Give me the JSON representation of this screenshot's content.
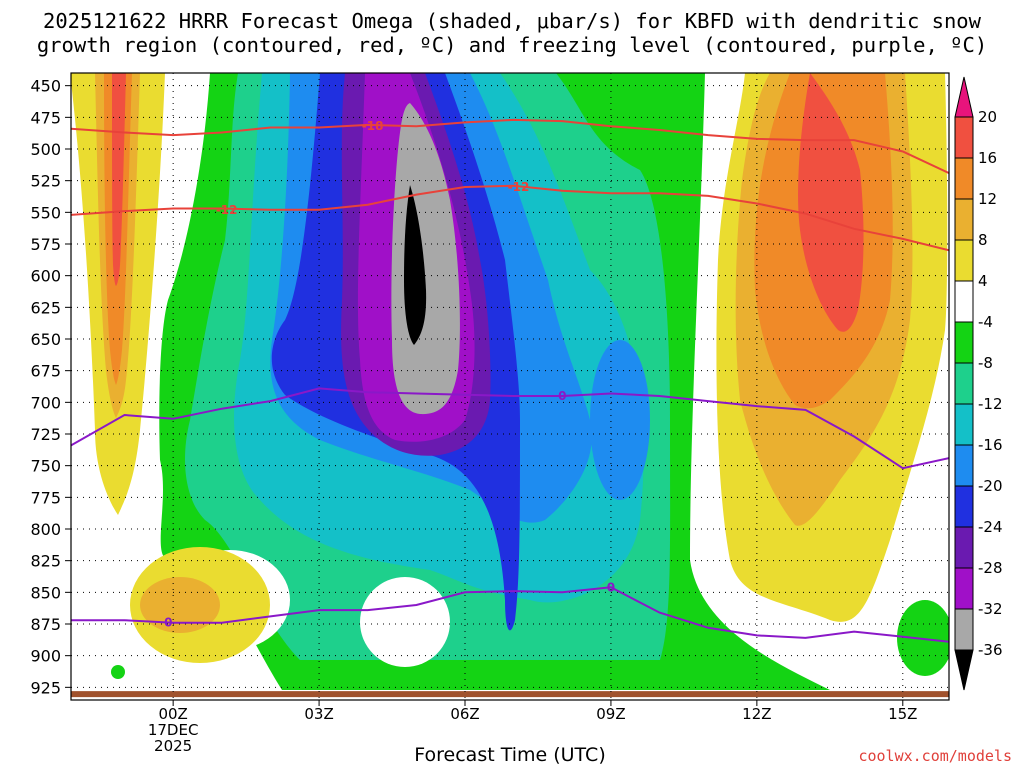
{
  "title_line1": "2025121622 HRRR Forecast Omega (shaded, μbar/s) for KBFD with dendritic snow",
  "title_line2": "growth region (contoured, red, ºC) and freezing level (contoured, purple, ºC)",
  "watermark": "coolwx.com/models",
  "colors": {
    "red_contour": "#e8423a",
    "purple_contour": "#8a18c8",
    "ground": "#a0522d"
  },
  "chart_data": {
    "type": "heatmap",
    "title": "2025121622 HRRR Forecast Omega (shaded, μbar/s) for KBFD with dendritic snow growth region (contoured, red, ºC) and freezing level (contoured, purple, ºC)",
    "xlabel": "Forecast Time (UTC)",
    "ylabel": "",
    "x_ticks": [
      {
        "h": 0,
        "label": "00Z",
        "sub1": "17DEC",
        "sub2": "2025"
      },
      {
        "h": 3,
        "label": "03Z",
        "sub1": "",
        "sub2": ""
      },
      {
        "h": 6,
        "label": "06Z",
        "sub1": "",
        "sub2": ""
      },
      {
        "h": 9,
        "label": "09Z",
        "sub1": "",
        "sub2": ""
      },
      {
        "h": 12,
        "label": "12Z",
        "sub1": "",
        "sub2": ""
      },
      {
        "h": 15,
        "label": "15Z",
        "sub1": "",
        "sub2": ""
      }
    ],
    "xlim": [
      -2.1,
      15.95
    ],
    "y_ticks": [
      450,
      475,
      500,
      525,
      550,
      575,
      600,
      625,
      650,
      675,
      700,
      725,
      750,
      775,
      800,
      825,
      850,
      875,
      900,
      925
    ],
    "ylim": [
      440,
      935
    ],
    "grid": true,
    "colorbar": {
      "levels": [
        -36,
        -32,
        -28,
        -24,
        -20,
        -16,
        -12,
        -8,
        -4,
        4,
        8,
        12,
        16,
        20
      ],
      "colors": [
        "#000000",
        "#a8a8a8",
        "#a010c8",
        "#6a1ab0",
        "#2030e0",
        "#1e8cf0",
        "#14c0c8",
        "#1ed08c",
        "#14d314",
        "#ffffff",
        "#eadc30",
        "#eab030",
        "#f08a28",
        "#f05040",
        "#e8147c"
      ]
    },
    "contours": [
      {
        "name": "red",
        "label": "-12",
        "points": [
          [
            -2.1,
            552
          ],
          [
            -1.0,
            549
          ],
          [
            0.0,
            547
          ],
          [
            1.0,
            547
          ],
          [
            2.0,
            548
          ],
          [
            3.0,
            548
          ],
          [
            4.0,
            544
          ],
          [
            5.0,
            536
          ],
          [
            6.0,
            530
          ],
          [
            7.0,
            529
          ],
          [
            8.0,
            533
          ],
          [
            9.0,
            535
          ],
          [
            10.0,
            535
          ],
          [
            11.0,
            537
          ],
          [
            12.0,
            543
          ],
          [
            13.0,
            551
          ],
          [
            14.0,
            563
          ],
          [
            15.0,
            571
          ],
          [
            15.95,
            580
          ]
        ]
      },
      {
        "name": "red",
        "label": "-18",
        "points": [
          [
            -2.1,
            484
          ],
          [
            -1.0,
            487
          ],
          [
            0.0,
            489
          ],
          [
            1.0,
            487
          ],
          [
            2.0,
            483
          ],
          [
            3.0,
            483
          ],
          [
            4.0,
            481
          ],
          [
            5.0,
            482
          ],
          [
            6.0,
            479
          ],
          [
            7.0,
            477
          ],
          [
            8.0,
            478
          ],
          [
            9.0,
            482
          ],
          [
            10.0,
            485
          ],
          [
            11.0,
            489
          ],
          [
            12.0,
            492
          ],
          [
            13.0,
            493
          ],
          [
            14.0,
            493
          ],
          [
            15.0,
            502
          ],
          [
            15.95,
            519
          ]
        ]
      },
      {
        "name": "purple",
        "label": "0",
        "points": [
          [
            -2.1,
            734
          ],
          [
            -1.0,
            710
          ],
          [
            0.0,
            713
          ],
          [
            1.0,
            705
          ],
          [
            2.0,
            699
          ],
          [
            3.0,
            689
          ],
          [
            4.0,
            692
          ],
          [
            5.0,
            693
          ],
          [
            6.0,
            694
          ],
          [
            7.0,
            695
          ],
          [
            8.0,
            695
          ],
          [
            9.0,
            693
          ],
          [
            10.0,
            695
          ],
          [
            11.0,
            699
          ],
          [
            12.0,
            703
          ],
          [
            13.0,
            706
          ],
          [
            14.0,
            727
          ],
          [
            15.0,
            752
          ],
          [
            15.95,
            744
          ]
        ]
      },
      {
        "name": "purple",
        "label": "0",
        "points": [
          [
            -2.1,
            872
          ],
          [
            -1.0,
            872
          ],
          [
            0.0,
            874
          ],
          [
            1.0,
            874
          ],
          [
            2.0,
            869
          ],
          [
            3.0,
            864
          ],
          [
            4.0,
            864
          ],
          [
            5.0,
            860
          ],
          [
            6.0,
            850
          ],
          [
            7.0,
            849
          ],
          [
            8.0,
            850
          ],
          [
            9.0,
            846
          ],
          [
            10.0,
            866
          ],
          [
            11.0,
            878
          ],
          [
            12.0,
            884
          ],
          [
            13.0,
            886
          ],
          [
            14.0,
            881
          ],
          [
            15.0,
            885
          ],
          [
            15.95,
            889
          ]
        ]
      }
    ],
    "contour_labels": [
      {
        "text": "-12",
        "h": 1.1,
        "p": 548,
        "color": "red"
      },
      {
        "text": "-18",
        "h": 4.1,
        "p": 482,
        "color": "red"
      },
      {
        "text": "-12",
        "h": 7.1,
        "p": 530,
        "color": "red"
      },
      {
        "text": "0",
        "h": 8.0,
        "p": 695,
        "color": "purple"
      },
      {
        "text": "0",
        "h": -0.1,
        "p": 874,
        "color": "purple"
      },
      {
        "text": "0",
        "h": 9.0,
        "p": 846,
        "color": "purple"
      }
    ]
  }
}
